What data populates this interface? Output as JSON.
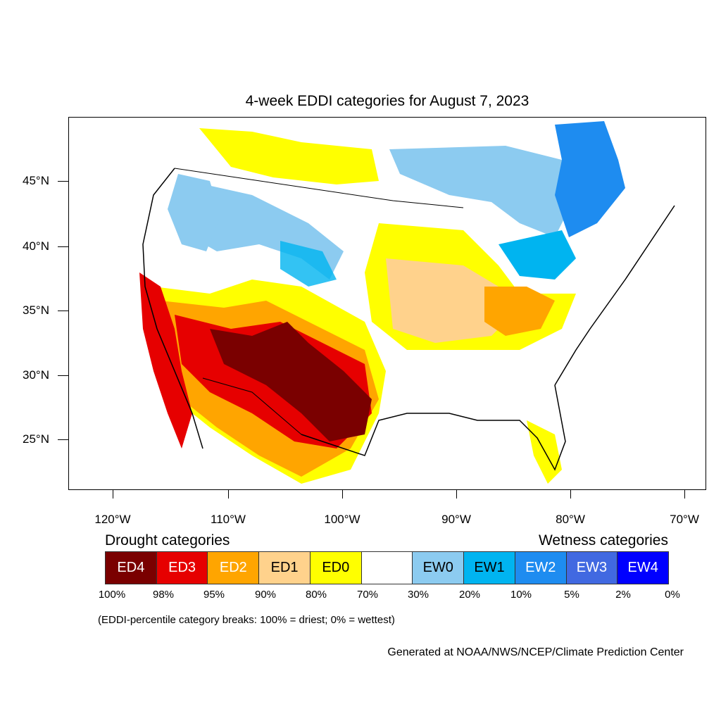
{
  "title": "4-week EDDI categories for August 7, 2023",
  "latitude_labels": [
    "45°N",
    "40°N",
    "35°N",
    "30°N",
    "25°N"
  ],
  "longitude_labels": [
    "120°W",
    "110°W",
    "100°W",
    "90°W",
    "80°W",
    "70°W"
  ],
  "legend": {
    "drought_title": "Drought categories",
    "wetness_title": "Wetness categories",
    "categories": [
      {
        "label": "ED4",
        "color": "#7a0000",
        "text_color": "#ffffff"
      },
      {
        "label": "ED3",
        "color": "#e60000",
        "text_color": "#ffffff"
      },
      {
        "label": "ED2",
        "color": "#ffa500",
        "text_color": "#ffffff"
      },
      {
        "label": "ED1",
        "color": "#ffd28c",
        "text_color": "#000000"
      },
      {
        "label": "ED0",
        "color": "#ffff00",
        "text_color": "#000000"
      },
      {
        "label": "",
        "color": "#ffffff",
        "text_color": "#000000"
      },
      {
        "label": "EW0",
        "color": "#8ccbf0",
        "text_color": "#000000"
      },
      {
        "label": "EW1",
        "color": "#00b4f0",
        "text_color": "#000000"
      },
      {
        "label": "EW2",
        "color": "#1e8cf0",
        "text_color": "#ffffff"
      },
      {
        "label": "EW3",
        "color": "#4169e1",
        "text_color": "#ffffff"
      },
      {
        "label": "EW4",
        "color": "#0000ff",
        "text_color": "#ffffff"
      }
    ],
    "percentiles": [
      "100%",
      "98%",
      "95%",
      "90%",
      "80%",
      "70%",
      "30%",
      "20%",
      "10%",
      "5%",
      "2%",
      "0%"
    ]
  },
  "note": "(EDDI-percentile category breaks: 100% = driest; 0% = wettest)",
  "credit": "Generated at NOAA/NWS/NCEP/Climate Prediction Center"
}
